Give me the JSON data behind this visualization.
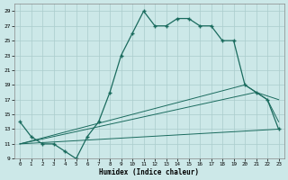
{
  "xlabel": "Humidex (Indice chaleur)",
  "bg_color": "#cce8e8",
  "line_color": "#1a6b5e",
  "grid_color": "#b8d8d8",
  "xlim": [
    -0.5,
    23.5
  ],
  "ylim": [
    9,
    30
  ],
  "xticks": [
    0,
    1,
    2,
    3,
    4,
    5,
    6,
    7,
    8,
    9,
    10,
    11,
    12,
    13,
    14,
    15,
    16,
    17,
    18,
    19,
    20,
    21,
    22,
    23
  ],
  "yticks": [
    9,
    11,
    13,
    15,
    17,
    19,
    21,
    23,
    25,
    27,
    29
  ],
  "line1_x": [
    0,
    1,
    2,
    3,
    4,
    5,
    6,
    7,
    8,
    9,
    10,
    11,
    12,
    13,
    14,
    15,
    16,
    17,
    18,
    19,
    20,
    21,
    22,
    23
  ],
  "line1_y": [
    14,
    12,
    11,
    11,
    10,
    9,
    12,
    14,
    18,
    23,
    26,
    29,
    27,
    27,
    28,
    28,
    27,
    27,
    25,
    25,
    19,
    18,
    17,
    13
  ],
  "line2_x": [
    0,
    23
  ],
  "line2_y": [
    11,
    13
  ],
  "line3_x": [
    0,
    21,
    23
  ],
  "line3_y": [
    11,
    18,
    17
  ],
  "line4_x": [
    0,
    20,
    22,
    23
  ],
  "line4_y": [
    11,
    19,
    17,
    14
  ]
}
